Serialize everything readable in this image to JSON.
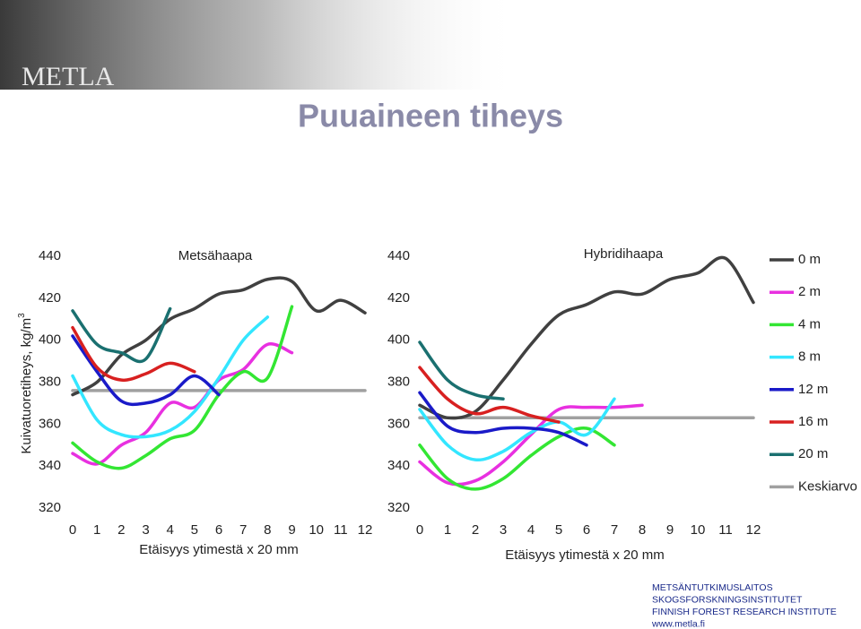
{
  "header": {
    "logo": "METLA",
    "title": "Puuaineen tiheys",
    "y_label": "Kuivatuoretiheys, kg/m",
    "y_label_sup": "3"
  },
  "chart_data": [
    {
      "type": "line",
      "title": "Metsähaapa",
      "x_label": "Etäisyys ytimestä x 20 mm",
      "x": [
        0,
        1,
        2,
        3,
        4,
        5,
        6,
        7,
        8,
        9,
        10,
        11,
        12
      ],
      "xlim": [
        0,
        12
      ],
      "xticks": [
        0,
        1,
        2,
        3,
        4,
        5,
        6,
        7,
        8,
        9,
        10,
        11,
        12
      ],
      "ylim": [
        320,
        440
      ],
      "yticks": [
        320,
        340,
        360,
        380,
        400,
        420,
        440
      ],
      "series": [
        {
          "color": "#404040",
          "values": [
            374,
            380,
            393,
            400,
            410,
            415,
            422,
            424,
            429,
            428,
            414,
            419,
            413
          ]
        },
        {
          "color": "#e830e0",
          "values": [
            346,
            341,
            350,
            356,
            370,
            368,
            381,
            386,
            398,
            394,
            null,
            null,
            null
          ]
        },
        {
          "color": "#33e633",
          "values": [
            351,
            342,
            339,
            345,
            353,
            357,
            374,
            385,
            382,
            416,
            null,
            null,
            null
          ]
        },
        {
          "color": "#33e6ff",
          "values": [
            383,
            362,
            355,
            354,
            357,
            366,
            382,
            400,
            411,
            null,
            null,
            null,
            null
          ]
        },
        {
          "color": "#1a1ac8",
          "values": [
            402,
            385,
            371,
            370,
            374,
            383,
            374,
            null,
            null,
            null,
            null,
            null,
            null
          ]
        },
        {
          "color": "#d82020",
          "values": [
            406,
            387,
            381,
            384,
            389,
            385,
            null,
            null,
            null,
            null,
            null,
            null,
            null
          ]
        },
        {
          "color": "#1a7070",
          "values": [
            414,
            398,
            394,
            391,
            415,
            null,
            null,
            null,
            null,
            null,
            null,
            null,
            null
          ]
        },
        {
          "color": "#a0a0a0",
          "values": [
            376,
            376,
            376,
            376,
            376,
            376,
            376,
            376,
            376,
            376,
            376,
            376,
            376
          ]
        }
      ]
    },
    {
      "type": "line",
      "title": "Hybridihaapa",
      "x_label": "Etäisyys ytimestä x 20 mm",
      "x": [
        0,
        1,
        2,
        3,
        4,
        5,
        6,
        7,
        8,
        9,
        10,
        11,
        12
      ],
      "xlim": [
        0,
        12
      ],
      "xticks": [
        0,
        1,
        2,
        3,
        4,
        5,
        6,
        7,
        8,
        9,
        10,
        11,
        12
      ],
      "ylim": [
        320,
        440
      ],
      "yticks": [
        320,
        340,
        360,
        380,
        400,
        420,
        440
      ],
      "series": [
        {
          "name": "0 m",
          "color": "#404040",
          "values": [
            369,
            363,
            366,
            381,
            398,
            412,
            417,
            423,
            422,
            429,
            432,
            439,
            418
          ]
        },
        {
          "name": "2 m",
          "color": "#e830e0",
          "values": [
            342,
            332,
            333,
            342,
            355,
            367,
            368,
            368,
            369,
            null,
            null,
            null,
            null
          ]
        },
        {
          "name": "4 m",
          "color": "#33e633",
          "values": [
            350,
            334,
            329,
            334,
            345,
            354,
            358,
            350,
            null,
            null,
            null,
            null,
            null
          ]
        },
        {
          "name": "8 m",
          "color": "#33e6ff",
          "values": [
            367,
            350,
            343,
            347,
            356,
            361,
            355,
            372,
            null,
            null,
            null,
            null,
            null
          ]
        },
        {
          "name": "12 m",
          "color": "#1a1ac8",
          "values": [
            375,
            359,
            356,
            358,
            358,
            356,
            350,
            null,
            null,
            null,
            null,
            null,
            null
          ]
        },
        {
          "name": "16 m",
          "color": "#d82020",
          "values": [
            387,
            372,
            365,
            368,
            364,
            361,
            null,
            null,
            null,
            null,
            null,
            null,
            null
          ]
        },
        {
          "name": "20 m",
          "color": "#1a7070",
          "values": [
            399,
            381,
            374,
            372,
            null,
            null,
            null,
            null,
            null,
            null,
            null,
            null,
            null
          ]
        },
        {
          "name": "Keskiarvo",
          "color": "#a0a0a0",
          "values": [
            363,
            363,
            363,
            363,
            363,
            363,
            363,
            363,
            363,
            363,
            363,
            363,
            363
          ]
        }
      ]
    }
  ],
  "footer": {
    "lines": [
      "METSÄNTUTKIMUSLAITOS",
      "SKOGSFORSKNINGSINSTITUTET",
      "FINNISH FOREST RESEARCH INSTITUTE",
      "www.metla.fi"
    ]
  }
}
